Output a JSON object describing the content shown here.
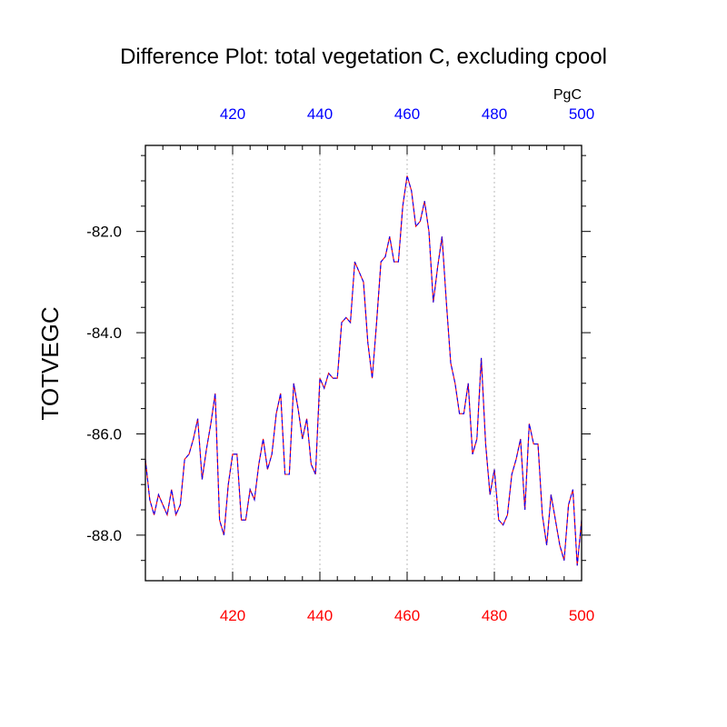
{
  "chart_data": {
    "type": "line",
    "title": "Difference Plot: total vegetation C, excluding cpool",
    "ylabel": "TOTVEGC",
    "units_label": "PgC",
    "xlim": [
      400,
      500
    ],
    "ylim": [
      -88.9,
      -80.3
    ],
    "grid": "vertical dotted lines at major x ticks",
    "bottom_axis": {
      "ticks": [
        420,
        440,
        460,
        480,
        500
      ],
      "tick_labels": [
        "420",
        "440",
        "460",
        "480",
        "500"
      ],
      "color": "#ff0000"
    },
    "top_axis": {
      "ticks": [
        420,
        440,
        460,
        480,
        500
      ],
      "tick_labels": [
        "420",
        "440",
        "460",
        "480",
        "500"
      ],
      "color": "#0000ff"
    },
    "left_axis": {
      "ticks": [
        -88,
        -86,
        -84,
        -82
      ],
      "tick_labels": [
        "-88.0",
        "-86.0",
        "-84.0",
        "-82.0"
      ]
    },
    "series": [
      {
        "color": "#ff0000",
        "style": "solid",
        "x": [
          400,
          401,
          402,
          403,
          404,
          405,
          406,
          407,
          408,
          409,
          410,
          411,
          412,
          413,
          414,
          415,
          416,
          417,
          418,
          419,
          420,
          421,
          422,
          423,
          424,
          425,
          426,
          427,
          428,
          429,
          430,
          431,
          432,
          433,
          434,
          435,
          436,
          437,
          438,
          439,
          440,
          441,
          442,
          443,
          444,
          445,
          446,
          447,
          448,
          449,
          450,
          451,
          452,
          453,
          454,
          455,
          456,
          457,
          458,
          459,
          460,
          461,
          462,
          463,
          464,
          465,
          466,
          467,
          468,
          469,
          470,
          471,
          472,
          473,
          474,
          475,
          476,
          477,
          478,
          479,
          480,
          481,
          482,
          483,
          484,
          485,
          486,
          487,
          488,
          489,
          490,
          491,
          492,
          493,
          494,
          495,
          496,
          497,
          498,
          499,
          500
        ],
        "y": [
          -86.5,
          -87.3,
          -87.6,
          -87.2,
          -87.4,
          -87.6,
          -87.1,
          -87.6,
          -87.4,
          -86.5,
          -86.4,
          -86.1,
          -85.7,
          -86.9,
          -86.3,
          -85.8,
          -85.2,
          -87.7,
          -88.0,
          -87.0,
          -86.4,
          -86.4,
          -87.7,
          -87.7,
          -87.1,
          -87.3,
          -86.6,
          -86.1,
          -86.7,
          -86.4,
          -85.6,
          -85.2,
          -86.8,
          -86.8,
          -85.0,
          -85.5,
          -86.1,
          -85.7,
          -86.6,
          -86.8,
          -84.9,
          -85.1,
          -84.8,
          -84.9,
          -84.9,
          -83.8,
          -83.7,
          -83.8,
          -82.6,
          -82.8,
          -83.0,
          -84.2,
          -84.9,
          -83.8,
          -82.6,
          -82.5,
          -82.1,
          -82.6,
          -82.6,
          -81.5,
          -80.9,
          -81.2,
          -81.9,
          -81.8,
          -81.4,
          -82.0,
          -83.4,
          -82.7,
          -82.1,
          -83.4,
          -84.6,
          -85.0,
          -85.6,
          -85.6,
          -85.0,
          -86.4,
          -86.1,
          -84.5,
          -86.2,
          -87.2,
          -86.7,
          -87.7,
          -87.8,
          -87.6,
          -86.8,
          -86.5,
          -86.1,
          -87.5,
          -85.8,
          -86.2,
          -86.2,
          -87.6,
          -88.2,
          -87.2,
          -87.7,
          -88.2,
          -88.5,
          -87.4,
          -87.1,
          -88.6,
          -87.7
        ]
      },
      {
        "color": "#0000ff",
        "style": "dashed",
        "x": [
          400,
          401,
          402,
          403,
          404,
          405,
          406,
          407,
          408,
          409,
          410,
          411,
          412,
          413,
          414,
          415,
          416,
          417,
          418,
          419,
          420,
          421,
          422,
          423,
          424,
          425,
          426,
          427,
          428,
          429,
          430,
          431,
          432,
          433,
          434,
          435,
          436,
          437,
          438,
          439,
          440,
          441,
          442,
          443,
          444,
          445,
          446,
          447,
          448,
          449,
          450,
          451,
          452,
          453,
          454,
          455,
          456,
          457,
          458,
          459,
          460,
          461,
          462,
          463,
          464,
          465,
          466,
          467,
          468,
          469,
          470,
          471,
          472,
          473,
          474,
          475,
          476,
          477,
          478,
          479,
          480,
          481,
          482,
          483,
          484,
          485,
          486,
          487,
          488,
          489,
          490,
          491,
          492,
          493,
          494,
          495,
          496,
          497,
          498,
          499,
          500
        ],
        "y": [
          -86.5,
          -87.3,
          -87.6,
          -87.2,
          -87.4,
          -87.6,
          -87.1,
          -87.6,
          -87.4,
          -86.5,
          -86.4,
          -86.1,
          -85.7,
          -86.9,
          -86.3,
          -85.8,
          -85.2,
          -87.7,
          -88.0,
          -87.0,
          -86.4,
          -86.4,
          -87.7,
          -87.7,
          -87.1,
          -87.3,
          -86.6,
          -86.1,
          -86.7,
          -86.4,
          -85.6,
          -85.2,
          -86.8,
          -86.8,
          -85.0,
          -85.5,
          -86.1,
          -85.7,
          -86.6,
          -86.8,
          -84.9,
          -85.1,
          -84.8,
          -84.9,
          -84.9,
          -83.8,
          -83.7,
          -83.8,
          -82.6,
          -82.8,
          -83.0,
          -84.2,
          -84.9,
          -83.8,
          -82.6,
          -82.5,
          -82.1,
          -82.6,
          -82.6,
          -81.5,
          -80.9,
          -81.2,
          -81.9,
          -81.8,
          -81.4,
          -82.0,
          -83.4,
          -82.7,
          -82.1,
          -83.4,
          -84.6,
          -85.0,
          -85.6,
          -85.6,
          -85.0,
          -86.4,
          -86.1,
          -84.5,
          -86.2,
          -87.2,
          -86.7,
          -87.7,
          -87.8,
          -87.6,
          -86.8,
          -86.5,
          -86.1,
          -87.5,
          -85.8,
          -86.2,
          -86.2,
          -87.6,
          -88.2,
          -87.2,
          -87.7,
          -88.2,
          -88.5,
          -87.4,
          -87.1,
          -88.6,
          -87.7
        ]
      }
    ]
  }
}
